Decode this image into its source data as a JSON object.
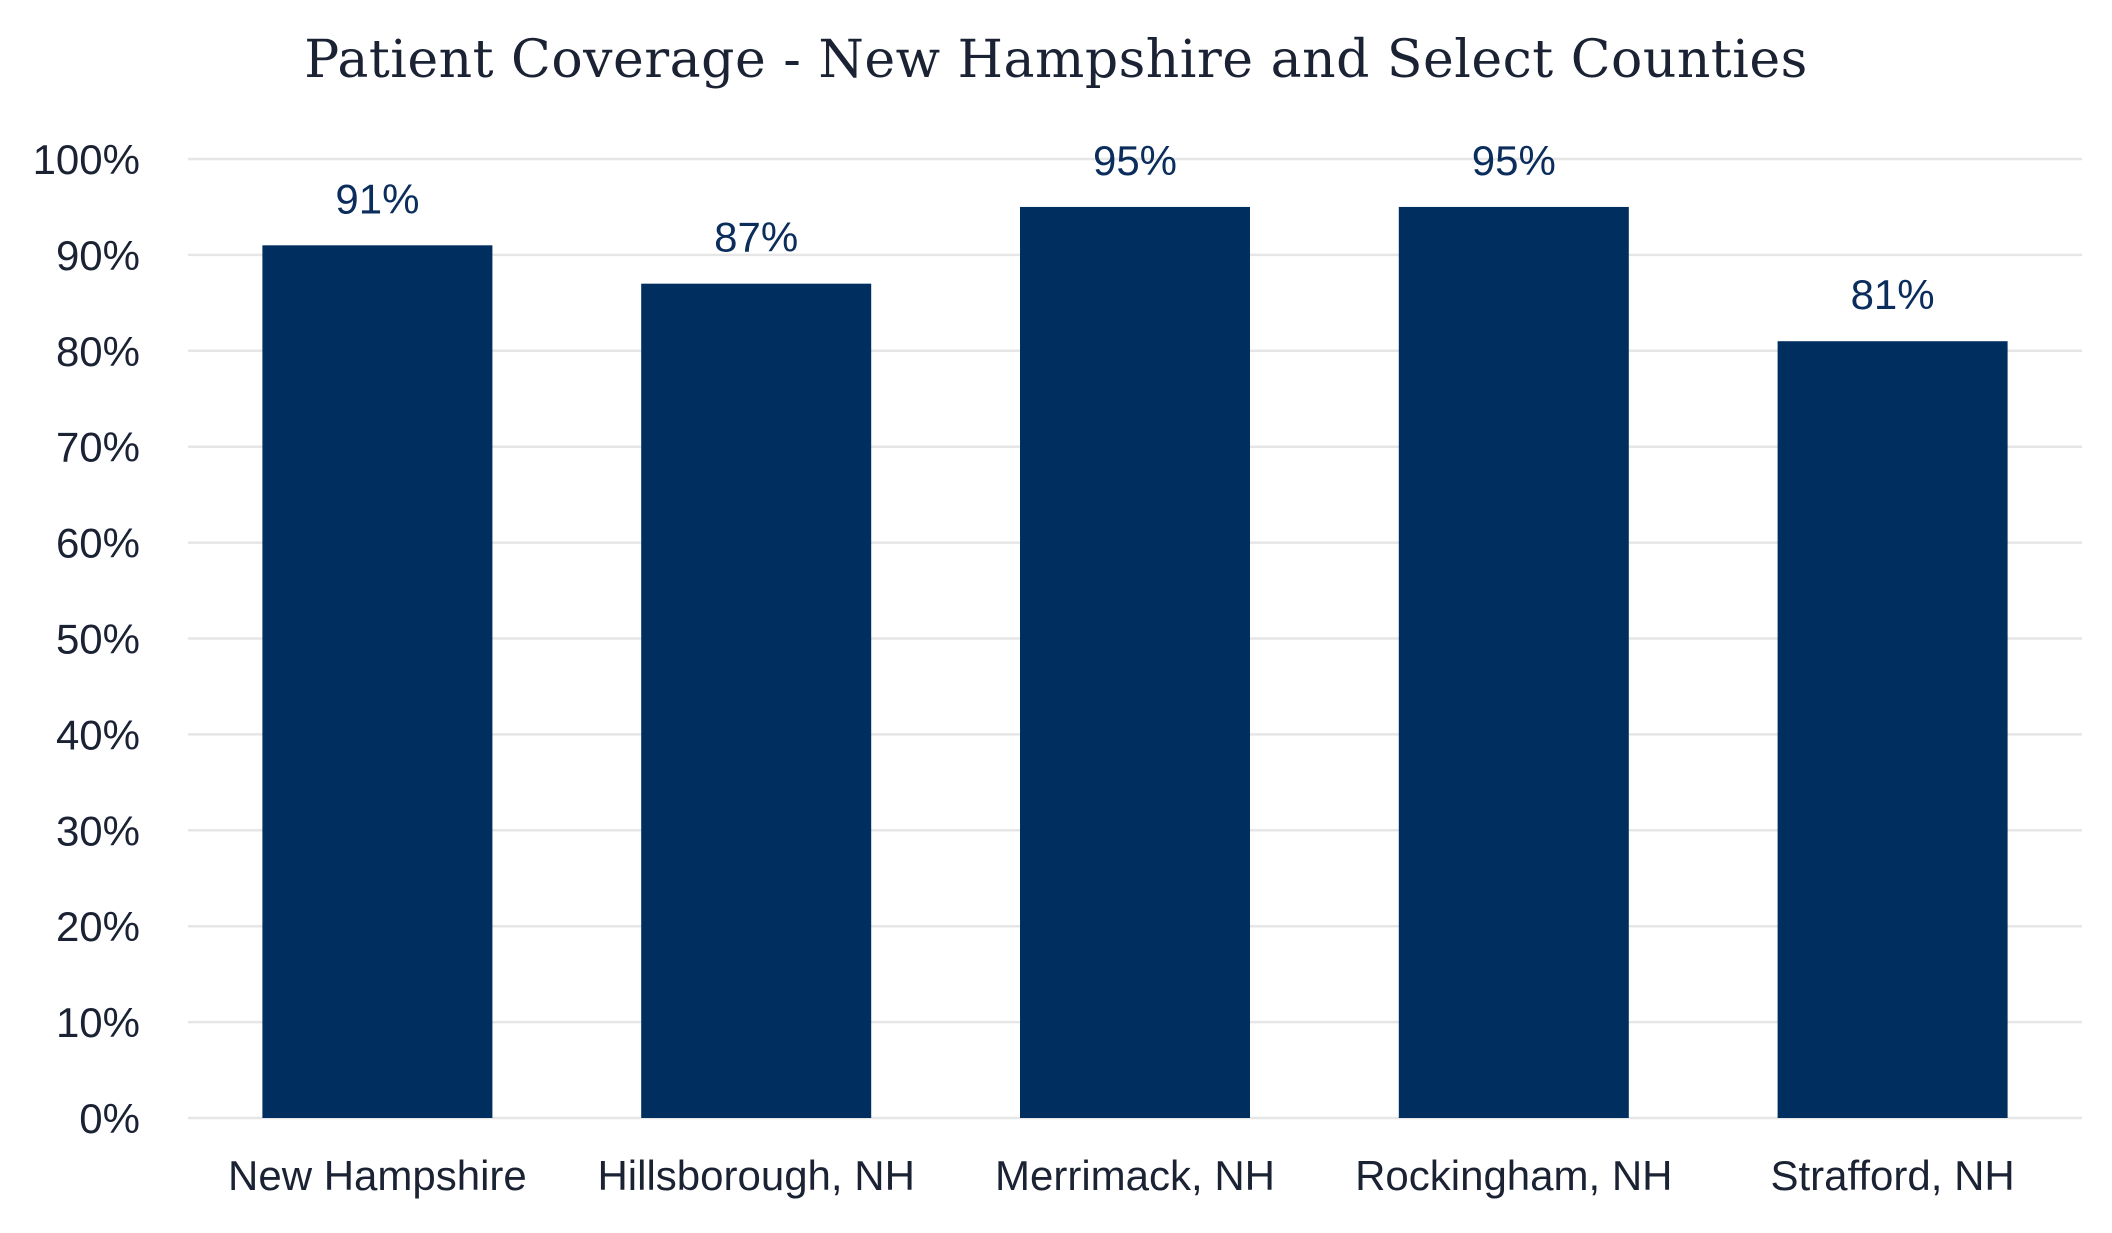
{
  "chart_data": {
    "type": "bar",
    "title": "Patient Coverage - New Hampshire and Select Counties",
    "xlabel": "",
    "ylabel": "",
    "categories": [
      "New Hampshire",
      "Hillsborough, NH",
      "Merrimack, NH",
      "Rockingham, NH",
      "Strafford, NH"
    ],
    "values": [
      91,
      87,
      95,
      95,
      81
    ],
    "value_labels": [
      "91%",
      "87%",
      "95%",
      "95%",
      "81%"
    ],
    "ylim": [
      0,
      100
    ],
    "yticks": [
      0,
      10,
      20,
      30,
      40,
      50,
      60,
      70,
      80,
      90,
      100
    ],
    "ytick_labels": [
      "0%",
      "10%",
      "20%",
      "30%",
      "40%",
      "50%",
      "60%",
      "70%",
      "80%",
      "90%",
      "100%"
    ],
    "grid": true,
    "legend": "none",
    "colors": {
      "bar": "#002e5f",
      "data_label": "#0b2d5c",
      "axis_text": "#1a2233",
      "grid": "#e6e6e6"
    }
  }
}
